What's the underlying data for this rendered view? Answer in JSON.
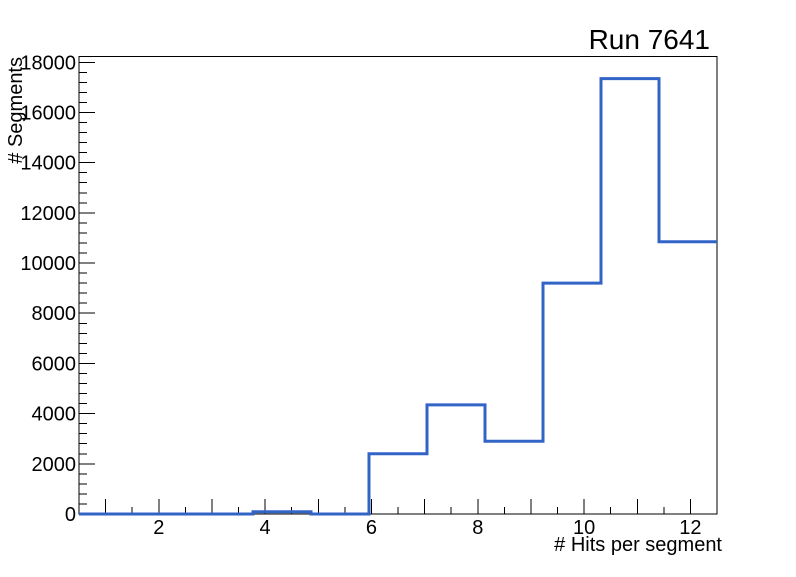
{
  "window": {
    "background": "#ffffff"
  },
  "chart_data": {
    "type": "step-histogram",
    "title": "Run 7641",
    "xlabel": "# Hits per segment",
    "ylabel": "# Segments",
    "xlim": [
      0.5,
      12.5
    ],
    "ylim": [
      0,
      18230
    ],
    "n_bins": 11,
    "bin_edges": [
      0.5,
      1.5909,
      2.6818,
      3.7727,
      4.8636,
      5.9545,
      7.0455,
      8.1364,
      9.2273,
      10.3182,
      11.4091,
      12.5
    ],
    "bin_contents": [
      0,
      0,
      0,
      90,
      0,
      2400,
      4350,
      2900,
      9200,
      17350,
      10850
    ],
    "x_major_ticks": [
      2,
      4,
      6,
      8,
      10,
      12
    ],
    "x_major_tick_labels": [
      "2",
      "4",
      "6",
      "8",
      "10",
      "12"
    ],
    "x_integer_ticks": [
      1,
      2,
      3,
      4,
      5,
      6,
      7,
      8,
      9,
      10,
      11,
      12
    ],
    "x_minor_tick_step": 0.5,
    "y_major_ticks": [
      0,
      2000,
      4000,
      6000,
      8000,
      10000,
      12000,
      14000,
      16000,
      18000
    ],
    "y_major_tick_labels": [
      "0",
      "2000",
      "4000",
      "6000",
      "8000",
      "10000",
      "12000",
      "14000",
      "16000",
      "18000"
    ],
    "y_minor_tick_step": 400,
    "grid": false,
    "legend": null,
    "line_color": "#3264c8",
    "axis_color": "#000000",
    "text_color": "#000000"
  }
}
